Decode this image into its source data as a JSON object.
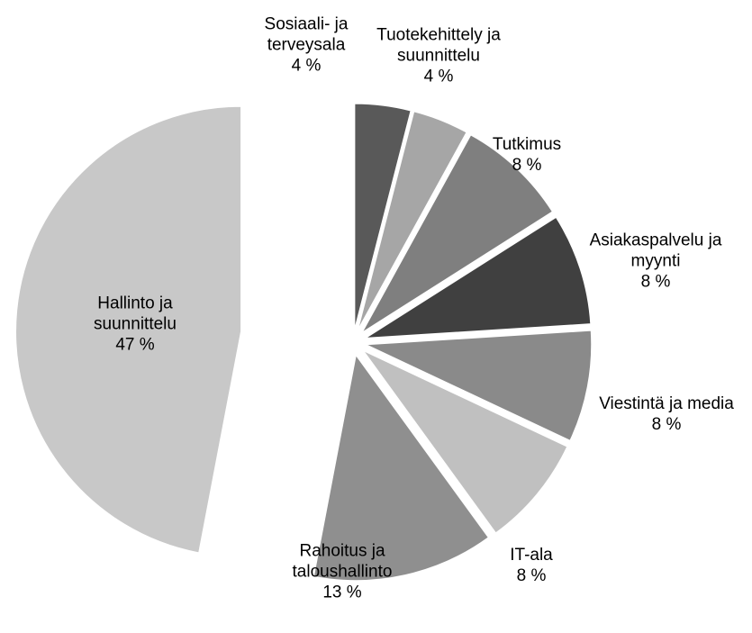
{
  "chart_data": {
    "type": "pie",
    "categories": [
      "Sosiaali- ja terveysala",
      "Tuotekehittely ja suunnittelu",
      "Tutkimus",
      "Asiakaspalvelu ja myynti",
      "Viestintä ja media",
      "IT-ala",
      "Rahoitus ja taloushallinto",
      "Hallinto ja suunnittelu"
    ],
    "values": [
      4,
      4,
      8,
      8,
      8,
      8,
      13,
      47
    ],
    "value_labels": [
      "4 %",
      "4 %",
      "8 %",
      "8 %",
      "8 %",
      "8 %",
      "13 %",
      "47 %"
    ],
    "colors": [
      "#595959",
      "#a6a6a6",
      "#7f7f7f",
      "#404040",
      "#8a8a8a",
      "#c0c0c0",
      "#8f8f8f",
      "#c8c8c8"
    ]
  }
}
